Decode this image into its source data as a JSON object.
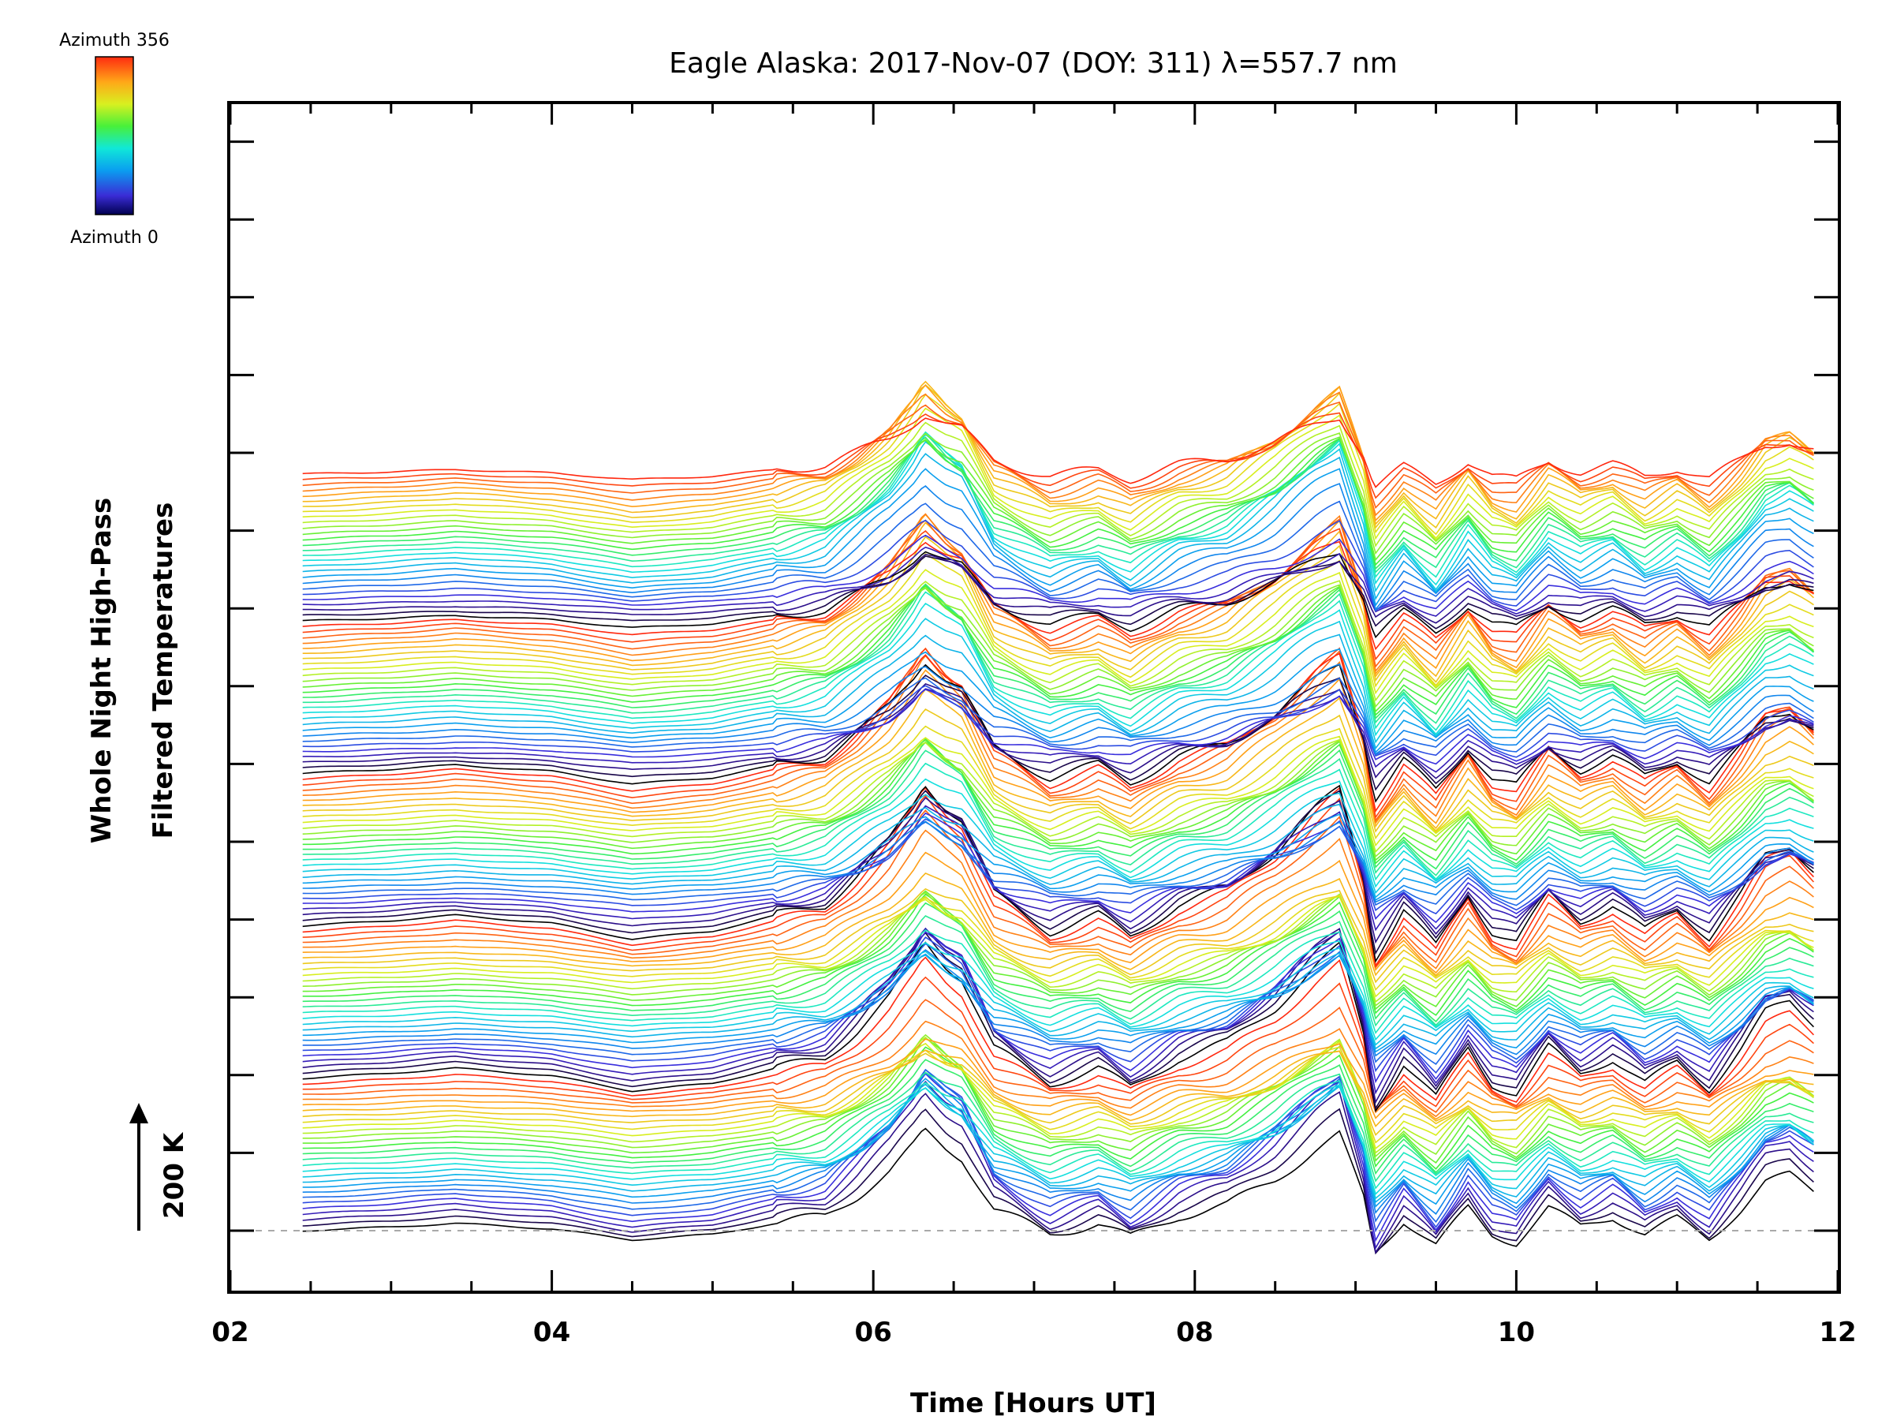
{
  "chart_data": {
    "type": "line",
    "title": "Eagle Alaska: 2017-Nov-07 (DOY: 311) λ=557.7 nm",
    "xlabel": "Time [Hours UT]",
    "ylabel_line1": "Whole Night High-Pass",
    "ylabel_line2": "Filtered Temperatures",
    "scale_label": "200 K",
    "x_tick_labels": [
      "02",
      "04",
      "06",
      "08",
      "10",
      "12"
    ],
    "x_ticks": [
      2,
      4,
      6,
      8,
      10,
      12
    ],
    "xlim": [
      2,
      12
    ],
    "x_start": 2.45,
    "x_end": 11.85,
    "colorbar": {
      "max_label": "Azimuth 356",
      "min_label": "Azimuth 0",
      "colormap": "rainbow"
    },
    "series_count": 140,
    "stack_groups": 5,
    "baseline_style": "dashed gray",
    "grid": false,
    "legend": "colorbar top-left",
    "profile_x": [
      2.45,
      3.0,
      3.4,
      4.0,
      4.5,
      5.0,
      5.4,
      5.7,
      5.9,
      6.1,
      6.25,
      6.32,
      6.45,
      6.55,
      6.75,
      7.1,
      7.4,
      7.6,
      7.9,
      8.2,
      8.5,
      8.75,
      8.9,
      9.05,
      9.12,
      9.3,
      9.5,
      9.7,
      9.85,
      10.0,
      10.2,
      10.4,
      10.6,
      10.8,
      11.0,
      11.2,
      11.4,
      11.55,
      11.7,
      11.85
    ],
    "profile_y": [
      0,
      10,
      20,
      5,
      -25,
      -10,
      20,
      40,
      95,
      160,
      230,
      270,
      225,
      200,
      60,
      -10,
      20,
      -20,
      40,
      70,
      140,
      220,
      260,
      90,
      -60,
      30,
      -40,
      60,
      -10,
      -30,
      60,
      10,
      40,
      -10,
      30,
      -20,
      60,
      130,
      150,
      110
    ]
  }
}
